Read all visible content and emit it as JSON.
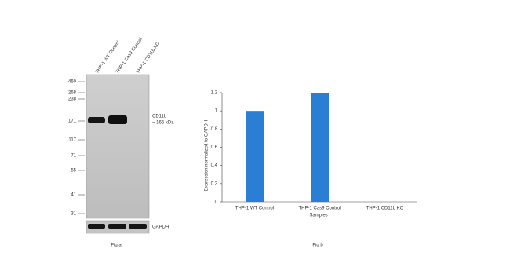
{
  "blot": {
    "lanes": [
      "THP-1 WT Control",
      "THP-1 Cas9 Control",
      "THP-1 CD11b KO"
    ],
    "markers": [
      "460",
      "268",
      "238",
      "171",
      "117",
      "71",
      "55",
      "41",
      "31"
    ],
    "target": "CD11b",
    "target_size": "~ 165 kDa",
    "loading": "GAPDH",
    "caption": "Fig a"
  },
  "chart_data": {
    "type": "bar",
    "caption": "Fig b",
    "xlabel": "Samples",
    "ylabel": "Expression normalized to GAPDH",
    "categories": [
      "THP-1 WT Control",
      "THP-1 Cas9 Control",
      "THP-1 CD11b KO"
    ],
    "values": [
      1,
      1.2,
      0
    ],
    "color": "#2a7fd4",
    "ylim": [
      0,
      1.2
    ],
    "yticks": [
      0,
      0.2,
      0.4,
      0.6,
      0.8,
      1,
      1.2
    ]
  }
}
